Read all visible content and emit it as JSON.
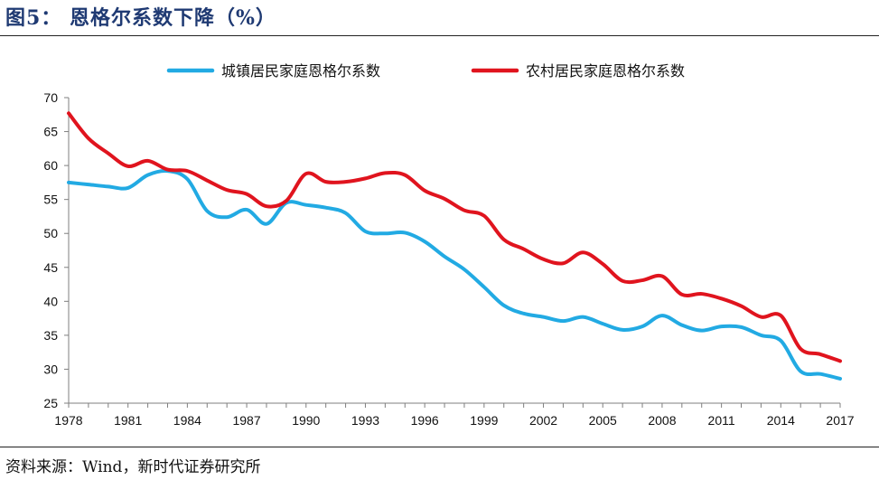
{
  "header": {
    "title": "图5：  恩格尔系数下降（%）"
  },
  "footer": {
    "source": "资料来源：Wind，新时代证券研究所"
  },
  "chart_data": {
    "type": "line",
    "title": "",
    "xlabel": "",
    "ylabel": "",
    "ylim": [
      25,
      70
    ],
    "yticks": [
      25,
      30,
      35,
      40,
      45,
      50,
      55,
      60,
      65,
      70
    ],
    "xlim": [
      1978,
      2017
    ],
    "xticks": [
      1978,
      1981,
      1984,
      1987,
      1990,
      1993,
      1996,
      1999,
      2002,
      2005,
      2008,
      2011,
      2014,
      2017
    ],
    "grid": false,
    "legend_position": "top",
    "x": [
      1978,
      1979,
      1980,
      1981,
      1982,
      1983,
      1984,
      1985,
      1986,
      1987,
      1988,
      1989,
      1990,
      1991,
      1992,
      1993,
      1994,
      1995,
      1996,
      1997,
      1998,
      1999,
      2000,
      2001,
      2002,
      2003,
      2004,
      2005,
      2006,
      2007,
      2008,
      2009,
      2010,
      2011,
      2012,
      2013,
      2014,
      2015,
      2016,
      2017
    ],
    "series": [
      {
        "name": "城镇居民家庭恩格尔系数",
        "color": "#22aae3",
        "values": [
          57.5,
          57.2,
          56.9,
          56.7,
          58.6,
          59.2,
          58.0,
          53.3,
          52.4,
          53.5,
          51.4,
          54.5,
          54.2,
          53.8,
          53.0,
          50.3,
          50.0,
          50.1,
          48.8,
          46.6,
          44.7,
          42.1,
          39.4,
          38.2,
          37.7,
          37.1,
          37.7,
          36.7,
          35.8,
          36.3,
          37.9,
          36.5,
          35.7,
          36.3,
          36.2,
          35.0,
          34.2,
          29.7,
          29.3,
          28.6
        ]
      },
      {
        "name": "农村居民家庭恩格尔系数",
        "color": "#e0141e",
        "values": [
          67.7,
          64.0,
          61.8,
          59.9,
          60.7,
          59.4,
          59.2,
          57.8,
          56.4,
          55.8,
          54.0,
          54.8,
          58.8,
          57.6,
          57.6,
          58.1,
          58.9,
          58.6,
          56.3,
          55.1,
          53.4,
          52.6,
          49.1,
          47.7,
          46.2,
          45.6,
          47.2,
          45.5,
          43.0,
          43.1,
          43.7,
          41.0,
          41.1,
          40.4,
          39.3,
          37.7,
          37.9,
          33.0,
          32.2,
          31.2
        ]
      }
    ]
  }
}
